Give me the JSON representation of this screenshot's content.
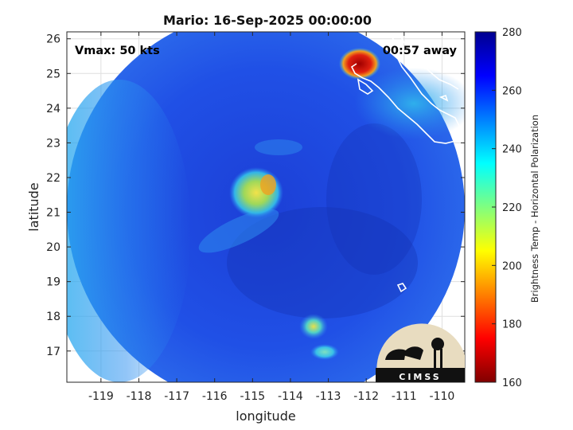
{
  "chart_data": {
    "type": "heatmap",
    "title": "Mario: 16-Sep-2025 00:00:00",
    "xlabel": "longitude",
    "ylabel": "latitude",
    "xlim": [
      -119.9,
      -109.4
    ],
    "ylim": [
      16.1,
      26.2
    ],
    "x_ticks": [
      -119,
      -118,
      -117,
      -116,
      -115,
      -114,
      -113,
      -112,
      -111,
      -110
    ],
    "y_ticks": [
      17,
      18,
      19,
      20,
      21,
      22,
      23,
      24,
      25,
      26
    ],
    "grid": true,
    "colorbar": {
      "label": "Brightness Temp - Horizontal Polarization",
      "range": [
        160,
        280
      ],
      "ticks": [
        160,
        180,
        200,
        220,
        240,
        260,
        280
      ],
      "colormap": "jet"
    },
    "annotations": {
      "vmax": "Vmax: 50 kts",
      "time_offset": "00:57 away"
    },
    "features": [
      {
        "name": "background",
        "lon": -114.8,
        "lat": 21.0,
        "value": 262
      },
      {
        "name": "storm core",
        "lon": -114.7,
        "lat": 21.6,
        "value": 218
      },
      {
        "name": "storm core",
        "lon": -114.4,
        "lat": 21.8,
        "value": 212
      },
      {
        "name": "storm core",
        "lon": -114.9,
        "lat": 21.2,
        "value": 222
      },
      {
        "name": "convective cell",
        "lon": -113.3,
        "lat": 17.6,
        "value": 220
      },
      {
        "name": "convective cell",
        "lon": -113.0,
        "lat": 16.9,
        "value": 238
      },
      {
        "name": "land (Baja California)",
        "lon": -112.2,
        "lat": 25.2,
        "value": 165
      },
      {
        "name": "coast",
        "lon": -111.5,
        "lat": 24.5,
        "value": 232
      },
      {
        "name": "clear sky edge",
        "lon": -119.5,
        "lat": 22.0,
        "value": 238
      }
    ]
  },
  "logo": {
    "text": "CIMSS"
  },
  "colors": {
    "scene_base": "#1f49e0",
    "scene_dark": "#1733b8",
    "warm_edge": "#27b6f0",
    "storm_yellow": "#e8e04a",
    "land_red": "#b30000"
  }
}
